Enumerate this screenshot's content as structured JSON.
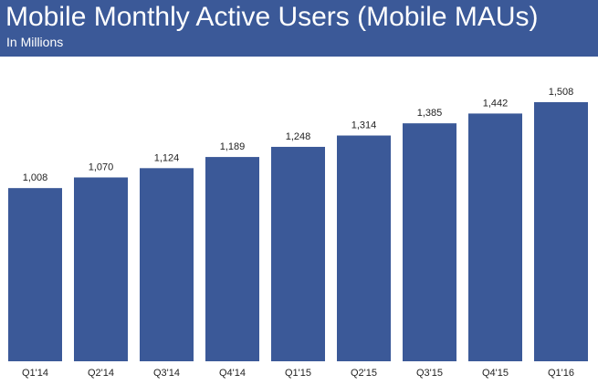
{
  "header": {
    "title": "Mobile Monthly Active Users (Mobile MAUs)",
    "subtitle": "In Millions",
    "background_color": "#3b5998"
  },
  "chart_data": {
    "type": "bar",
    "title": "Mobile Monthly Active Users (Mobile MAUs)",
    "subtitle": "In Millions",
    "xlabel": "",
    "ylabel": "",
    "categories": [
      "Q1'14",
      "Q2'14",
      "Q3'14",
      "Q4'14",
      "Q1'15",
      "Q2'15",
      "Q3'15",
      "Q4'15",
      "Q1'16"
    ],
    "values": [
      1008,
      1070,
      1124,
      1189,
      1248,
      1314,
      1385,
      1442,
      1508
    ],
    "value_labels": [
      "1,008",
      "1,070",
      "1,124",
      "1,189",
      "1,248",
      "1,314",
      "1,385",
      "1,442",
      "1,508"
    ],
    "ylim": [
      0,
      1508
    ],
    "grid": false,
    "bar_color": "#3b5998"
  }
}
